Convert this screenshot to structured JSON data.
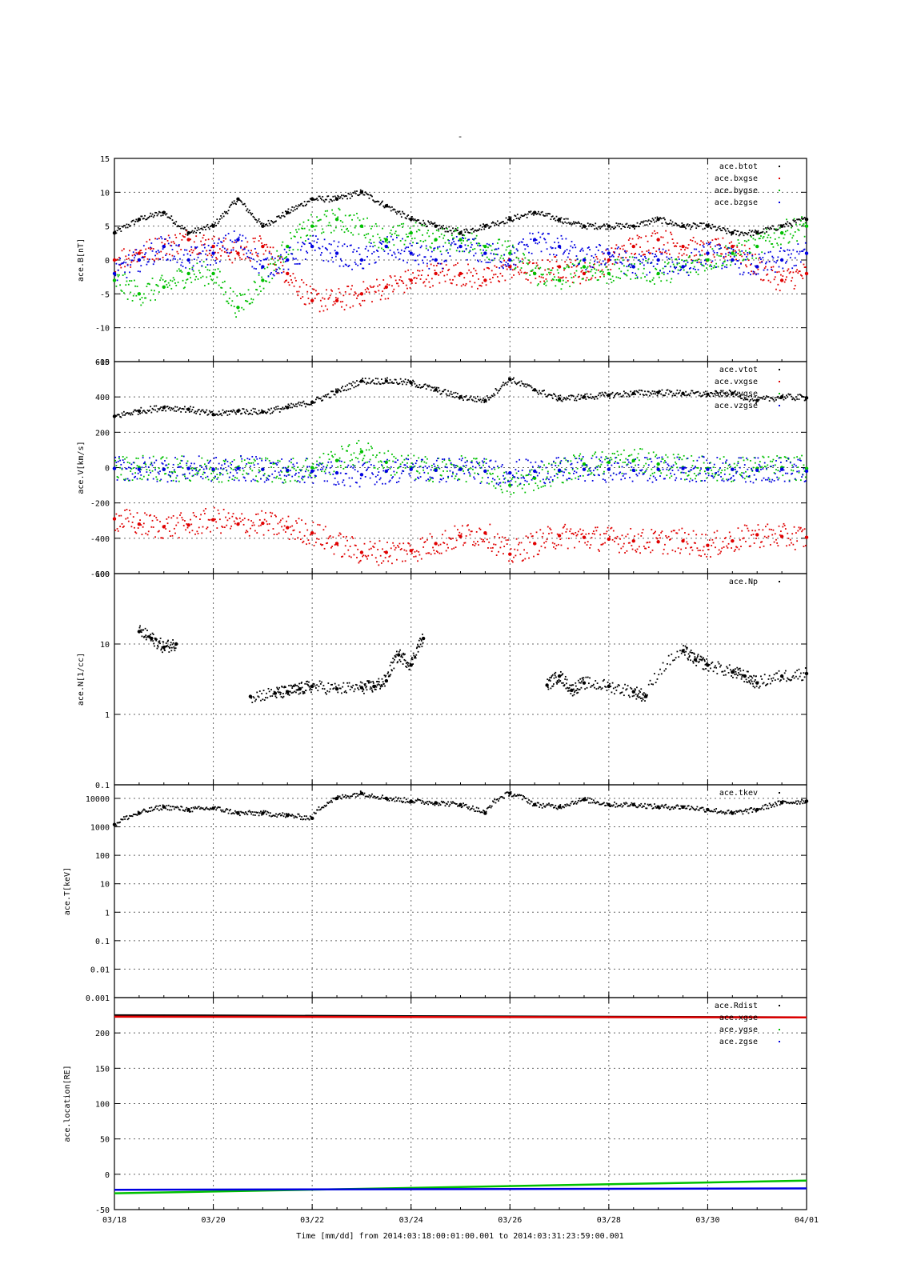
{
  "figure": {
    "title": "-",
    "time_axis": {
      "label": "Time [mm/dd]  from 2014:03:18:00:01:00.001  to  2014:03:31:23:59:00.001",
      "ticks": [
        "03/18",
        "03/20",
        "03/22",
        "03/24",
        "03/26",
        "03/28",
        "03/30",
        "04/01"
      ],
      "range_days": [
        0,
        14
      ]
    }
  },
  "chart_data": [
    {
      "type": "scatter",
      "panel": "B",
      "ylabel": "ace.B[nT]",
      "ylim": [
        -15,
        15
      ],
      "yticks": [
        15,
        10,
        5,
        0,
        -5,
        -10,
        -15
      ],
      "grid": true,
      "legend": "top-right",
      "series": [
        {
          "name": "ace.btot",
          "color": "#000000",
          "x": [
            "03/18",
            "03/18 12:00",
            "03/19",
            "03/19 12:00",
            "03/20",
            "03/20 12:00",
            "03/21",
            "03/21 12:00",
            "03/22",
            "03/22 12:00",
            "03/23",
            "03/23 12:00",
            "03/24",
            "03/24 12:00",
            "03/25",
            "03/25 12:00",
            "03/26",
            "03/26 12:00",
            "03/27",
            "03/27 12:00",
            "03/28",
            "03/28 12:00",
            "03/29",
            "03/29 12:00",
            "03/30",
            "03/30 12:00",
            "03/31",
            "03/31 12:00",
            "04/01"
          ],
          "y": [
            4,
            6,
            7,
            4,
            5,
            9,
            5,
            7,
            9,
            9,
            10,
            8,
            6,
            5,
            4,
            5,
            6,
            7,
            6,
            5,
            5,
            5,
            6,
            5,
            5,
            4,
            4,
            5,
            6
          ]
        },
        {
          "name": "ace.bxgse",
          "color": "#e00000",
          "x": [
            "03/18",
            "03/18 12:00",
            "03/19",
            "03/19 12:00",
            "03/20",
            "03/20 12:00",
            "03/21",
            "03/21 12:00",
            "03/22",
            "03/22 12:00",
            "03/23",
            "03/23 12:00",
            "03/24",
            "03/24 12:00",
            "03/25",
            "03/25 12:00",
            "03/26",
            "03/26 12:00",
            "03/27",
            "03/27 12:00",
            "03/28",
            "03/28 12:00",
            "03/29",
            "03/29 12:00",
            "03/30",
            "03/30 12:00",
            "03/31",
            "03/31 12:00",
            "04/01"
          ],
          "y": [
            0,
            1,
            2,
            3,
            2,
            1,
            2,
            -2,
            -6,
            -6,
            -5,
            -4,
            -3,
            -2,
            -2,
            -3,
            -1,
            -2,
            -1,
            -2,
            0,
            2,
            3,
            2,
            1,
            2,
            -1,
            -3,
            -2
          ]
        },
        {
          "name": "ace.bygse",
          "color": "#00c000",
          "x": [
            "03/18",
            "03/18 12:00",
            "03/19",
            "03/19 12:00",
            "03/20",
            "03/20 12:00",
            "03/21",
            "03/21 12:00",
            "03/22",
            "03/22 12:00",
            "03/23",
            "03/23 12:00",
            "03/24",
            "03/24 12:00",
            "03/25",
            "03/25 12:00",
            "03/26",
            "03/26 12:00",
            "03/27",
            "03/27 12:00",
            "03/28",
            "03/28 12:00",
            "03/29",
            "03/29 12:00",
            "03/30",
            "03/30 12:00",
            "03/31",
            "03/31 12:00",
            "04/01"
          ],
          "y": [
            -3,
            -5,
            -4,
            -2,
            -2,
            -7,
            -3,
            2,
            5,
            6,
            5,
            3,
            4,
            3,
            3,
            2,
            1,
            -2,
            -3,
            -1,
            -2,
            -1,
            -2,
            -1,
            0,
            1,
            2,
            4,
            5
          ]
        },
        {
          "name": "ace.bzgse",
          "color": "#0000e0",
          "x": [
            "03/18",
            "03/18 12:00",
            "03/19",
            "03/19 12:00",
            "03/20",
            "03/20 12:00",
            "03/21",
            "03/21 12:00",
            "03/22",
            "03/22 12:00",
            "03/23",
            "03/23 12:00",
            "03/24",
            "03/24 12:00",
            "03/25",
            "03/25 12:00",
            "03/26",
            "03/26 12:00",
            "03/27",
            "03/27 12:00",
            "03/28",
            "03/28 12:00",
            "03/29",
            "03/29 12:00",
            "03/30",
            "03/30 12:00",
            "03/31",
            "03/31 12:00",
            "04/01"
          ],
          "y": [
            -2,
            0,
            2,
            0,
            1,
            3,
            -1,
            0,
            2,
            1,
            0,
            2,
            1,
            0,
            2,
            1,
            0,
            3,
            2,
            0,
            1,
            -1,
            0,
            -1,
            1,
            0,
            -1,
            0,
            1
          ]
        }
      ]
    },
    {
      "type": "scatter",
      "panel": "V",
      "ylabel": "ace.V[km/s]",
      "ylim": [
        -600,
        600
      ],
      "yticks": [
        600,
        400,
        200,
        0,
        -200,
        -400,
        -600
      ],
      "grid": true,
      "legend": "top-right",
      "series": [
        {
          "name": "ace.vtot",
          "color": "#000000",
          "x": [
            "03/18",
            "03/18 12:00",
            "03/19",
            "03/19 12:00",
            "03/20",
            "03/20 12:00",
            "03/21",
            "03/21 12:00",
            "03/22",
            "03/22 12:00",
            "03/23",
            "03/23 12:00",
            "03/24",
            "03/24 12:00",
            "03/25",
            "03/25 12:00",
            "03/26",
            "03/26 12:00",
            "03/27",
            "03/27 12:00",
            "03/28",
            "03/28 12:00",
            "03/29",
            "03/29 12:00",
            "03/30",
            "03/30 12:00",
            "03/31",
            "03/31 12:00",
            "04/01"
          ],
          "y": [
            290,
            320,
            340,
            330,
            300,
            320,
            315,
            340,
            370,
            430,
            490,
            490,
            480,
            440,
            400,
            380,
            500,
            440,
            390,
            400,
            410,
            420,
            425,
            420,
            415,
            420,
            380,
            400,
            395
          ]
        },
        {
          "name": "ace.vxgse",
          "color": "#e00000",
          "x": [
            "03/18",
            "03/18 12:00",
            "03/19",
            "03/19 12:00",
            "03/20",
            "03/20 12:00",
            "03/21",
            "03/21 12:00",
            "03/22",
            "03/22 12:00",
            "03/23",
            "03/23 12:00",
            "03/24",
            "03/24 12:00",
            "03/25",
            "03/25 12:00",
            "03/26",
            "03/26 12:00",
            "03/27",
            "03/27 12:00",
            "03/28",
            "03/28 12:00",
            "03/29",
            "03/29 12:00",
            "03/30",
            "03/30 12:00",
            "03/31",
            "03/31 12:00",
            "04/01"
          ],
          "y": [
            -290,
            -320,
            -335,
            -325,
            -295,
            -320,
            -315,
            -340,
            -370,
            -430,
            -480,
            -480,
            -470,
            -430,
            -390,
            -370,
            -490,
            -430,
            -385,
            -395,
            -405,
            -415,
            -420,
            -415,
            -440,
            -415,
            -380,
            -390,
            -395
          ]
        },
        {
          "name": "ace.vygse",
          "color": "#00c000",
          "x": [
            "03/18",
            "03/18 12:00",
            "03/19",
            "03/19 12:00",
            "03/20",
            "03/20 12:00",
            "03/21",
            "03/21 12:00",
            "03/22",
            "03/22 12:00",
            "03/23",
            "03/23 12:00",
            "03/24",
            "03/24 12:00",
            "03/25",
            "03/25 12:00",
            "03/26",
            "03/26 12:00",
            "03/27",
            "03/27 12:00",
            "03/28",
            "03/28 12:00",
            "03/29",
            "03/29 12:00",
            "03/30",
            "03/30 12:00",
            "03/31",
            "03/31 12:00",
            "04/01"
          ],
          "y": [
            -5,
            0,
            -10,
            -5,
            -15,
            0,
            -10,
            -20,
            0,
            40,
            90,
            30,
            0,
            -10,
            -5,
            -20,
            -100,
            -60,
            -20,
            20,
            30,
            40,
            20,
            0,
            -5,
            -10,
            -5,
            0,
            -5
          ]
        },
        {
          "name": "ace.vzgse",
          "color": "#0000e0",
          "x": [
            "03/18",
            "03/18 12:00",
            "03/19",
            "03/19 12:00",
            "03/20",
            "03/20 12:00",
            "03/21",
            "03/21 12:00",
            "03/22",
            "03/22 12:00",
            "03/23",
            "03/23 12:00",
            "03/24",
            "03/24 12:00",
            "03/25",
            "03/25 12:00",
            "03/26",
            "03/26 12:00",
            "03/27",
            "03/27 12:00",
            "03/28",
            "03/28 12:00",
            "03/29",
            "03/29 12:00",
            "03/30",
            "03/30 12:00",
            "03/31",
            "03/31 12:00",
            "04/01"
          ],
          "y": [
            -5,
            -10,
            -10,
            -5,
            -10,
            -5,
            -10,
            -15,
            -20,
            -30,
            -40,
            -20,
            -10,
            -15,
            -10,
            -20,
            -30,
            -20,
            -15,
            -10,
            -10,
            -15,
            -10,
            -5,
            -10,
            -10,
            -15,
            -10,
            -20
          ]
        }
      ]
    },
    {
      "type": "scatter",
      "panel": "N",
      "ylabel": "ace.N[1/cc]",
      "yscale": "log",
      "ylim": [
        0.1,
        100
      ],
      "yticks": [
        "100",
        "10",
        "1",
        "0.1"
      ],
      "grid": true,
      "legend": "top-right",
      "series": [
        {
          "name": "ace.Np",
          "color": "#000000",
          "x": [
            "03/18 12:00",
            "03/18 18:00",
            "03/19",
            "03/19 06:00",
            "03/20 18:00",
            "03/21 06:00",
            "03/21 12:00",
            "03/21 18:00",
            "03/22",
            "03/22 12:00",
            "03/23",
            "03/23 06:00",
            "03/23 12:00",
            "03/23 18:00",
            "03/24",
            "03/24 06:00",
            "03/26 18:00",
            "03/27",
            "03/27 06:00",
            "03/27 12:00",
            "03/28",
            "03/28 12:00",
            "03/28 18:00",
            "03/29 12:00",
            "03/29 18:00",
            "03/30",
            "03/30 12:00",
            "03/30 18:00",
            "03/31",
            "03/31 12:00",
            "04/01"
          ],
          "y": [
            15,
            12,
            9,
            10,
            1.8,
            2,
            2.1,
            2.3,
            2.5,
            2.3,
            2.4,
            2.5,
            3,
            7,
            5,
            12,
            2.6,
            3.5,
            2.2,
            2.8,
            2.5,
            2.1,
            1.8,
            8,
            6,
            5,
            4,
            3.5,
            2.8,
            3.5,
            3.8
          ]
        }
      ]
    },
    {
      "type": "scatter",
      "panel": "T",
      "ylabel": "ace.T[keV]",
      "yscale": "log",
      "ylim": [
        0.001,
        30000
      ],
      "yticks": [
        "10000",
        "1000",
        "100",
        "10",
        "1",
        "0.1",
        "0.01",
        "0.001"
      ],
      "grid": true,
      "legend": "top-right",
      "series": [
        {
          "name": "ace.tkev",
          "color": "#000000",
          "x": [
            "03/18",
            "03/18 12:00",
            "03/19",
            "03/19 12:00",
            "03/20",
            "03/20 12:00",
            "03/21",
            "03/21 12:00",
            "03/22",
            "03/22 12:00",
            "03/23",
            "03/23 12:00",
            "03/24",
            "03/24 12:00",
            "03/25",
            "03/25 12:00",
            "03/26",
            "03/26 12:00",
            "03/27",
            "03/27 12:00",
            "03/28",
            "03/28 12:00",
            "03/29",
            "03/29 12:00",
            "03/30",
            "03/30 12:00",
            "03/31",
            "03/31 12:00",
            "04/01"
          ],
          "y": [
            1200,
            3000,
            5000,
            4000,
            4500,
            3000,
            3000,
            2500,
            2000,
            10000,
            15000,
            10000,
            8000,
            7000,
            6000,
            3000,
            15000,
            6000,
            5000,
            9000,
            6000,
            6000,
            5000,
            5000,
            4000,
            3000,
            4000,
            7000,
            8000
          ]
        }
      ]
    },
    {
      "type": "line",
      "panel": "location",
      "ylabel": "ace.location[RE]",
      "ylim": [
        -50,
        250
      ],
      "yticks": [
        200,
        150,
        100,
        50,
        0,
        -50
      ],
      "grid": true,
      "legend": "top-right",
      "series": [
        {
          "name": "ace.Rdist",
          "color": "#000000",
          "x": [
            "03/18",
            "04/01"
          ],
          "y": [
            225,
            222
          ]
        },
        {
          "name": "ace.xgse",
          "color": "#e00000",
          "x": [
            "03/18",
            "04/01"
          ],
          "y": [
            223,
            222
          ]
        },
        {
          "name": "ace.ygse",
          "color": "#00c000",
          "x": [
            "03/18",
            "04/01"
          ],
          "y": [
            -27,
            -9
          ]
        },
        {
          "name": "ace.zgse",
          "color": "#0000e0",
          "x": [
            "03/18",
            "04/01"
          ],
          "y": [
            -22,
            -20
          ]
        }
      ]
    }
  ]
}
